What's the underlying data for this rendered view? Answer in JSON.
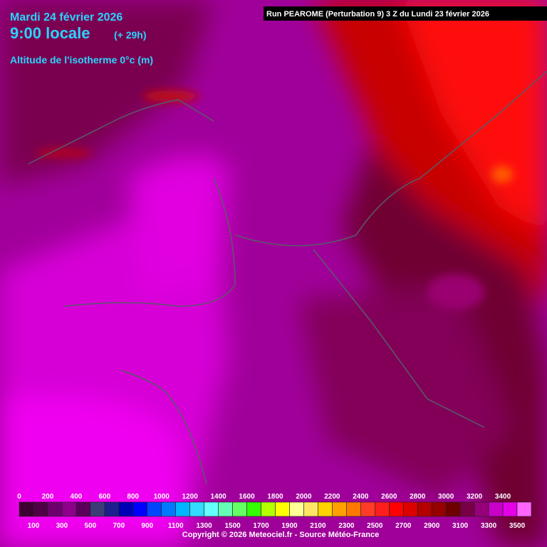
{
  "header": {
    "date": "Mardi 24 février 2026",
    "time": "9:00 locale",
    "lead": "(+ 29h)",
    "parameter": "Altitude de l'isotherme 0°c (m)",
    "run": "Run PEAROME (Perturbation 9) 3 Z du Lundi 23 février 2026"
  },
  "legend": {
    "levels": [
      0,
      100,
      200,
      300,
      400,
      500,
      600,
      700,
      800,
      900,
      1000,
      1100,
      1200,
      1300,
      1400,
      1500,
      1600,
      1700,
      1800,
      1900,
      2000,
      2100,
      2200,
      2300,
      2400,
      2500,
      2600,
      2700,
      2800,
      2900,
      3000,
      3100,
      3200,
      3300,
      3400,
      3500
    ],
    "colors": [
      "#3c0032",
      "#500046",
      "#6e006e",
      "#8c008c",
      "#5a005a",
      "#3c3c78",
      "#1e1e8c",
      "#0000b4",
      "#0000ff",
      "#0046ff",
      "#0078ff",
      "#00b4ff",
      "#32dcff",
      "#64ffff",
      "#64ffb4",
      "#64ff64",
      "#32ff00",
      "#b4ff00",
      "#ffff00",
      "#ffff96",
      "#ffe664",
      "#ffd200",
      "#ffa000",
      "#ff7800",
      "#ff3c28",
      "#ff1e1e",
      "#ff0000",
      "#dc0000",
      "#b40000",
      "#960000",
      "#6e0000",
      "#780046",
      "#960078",
      "#c800c8",
      "#e600e6",
      "#ff64ff"
    ]
  },
  "footer": {
    "copyright": "Copyright © 2026 Meteociel.fr - Source Météo-France"
  }
}
